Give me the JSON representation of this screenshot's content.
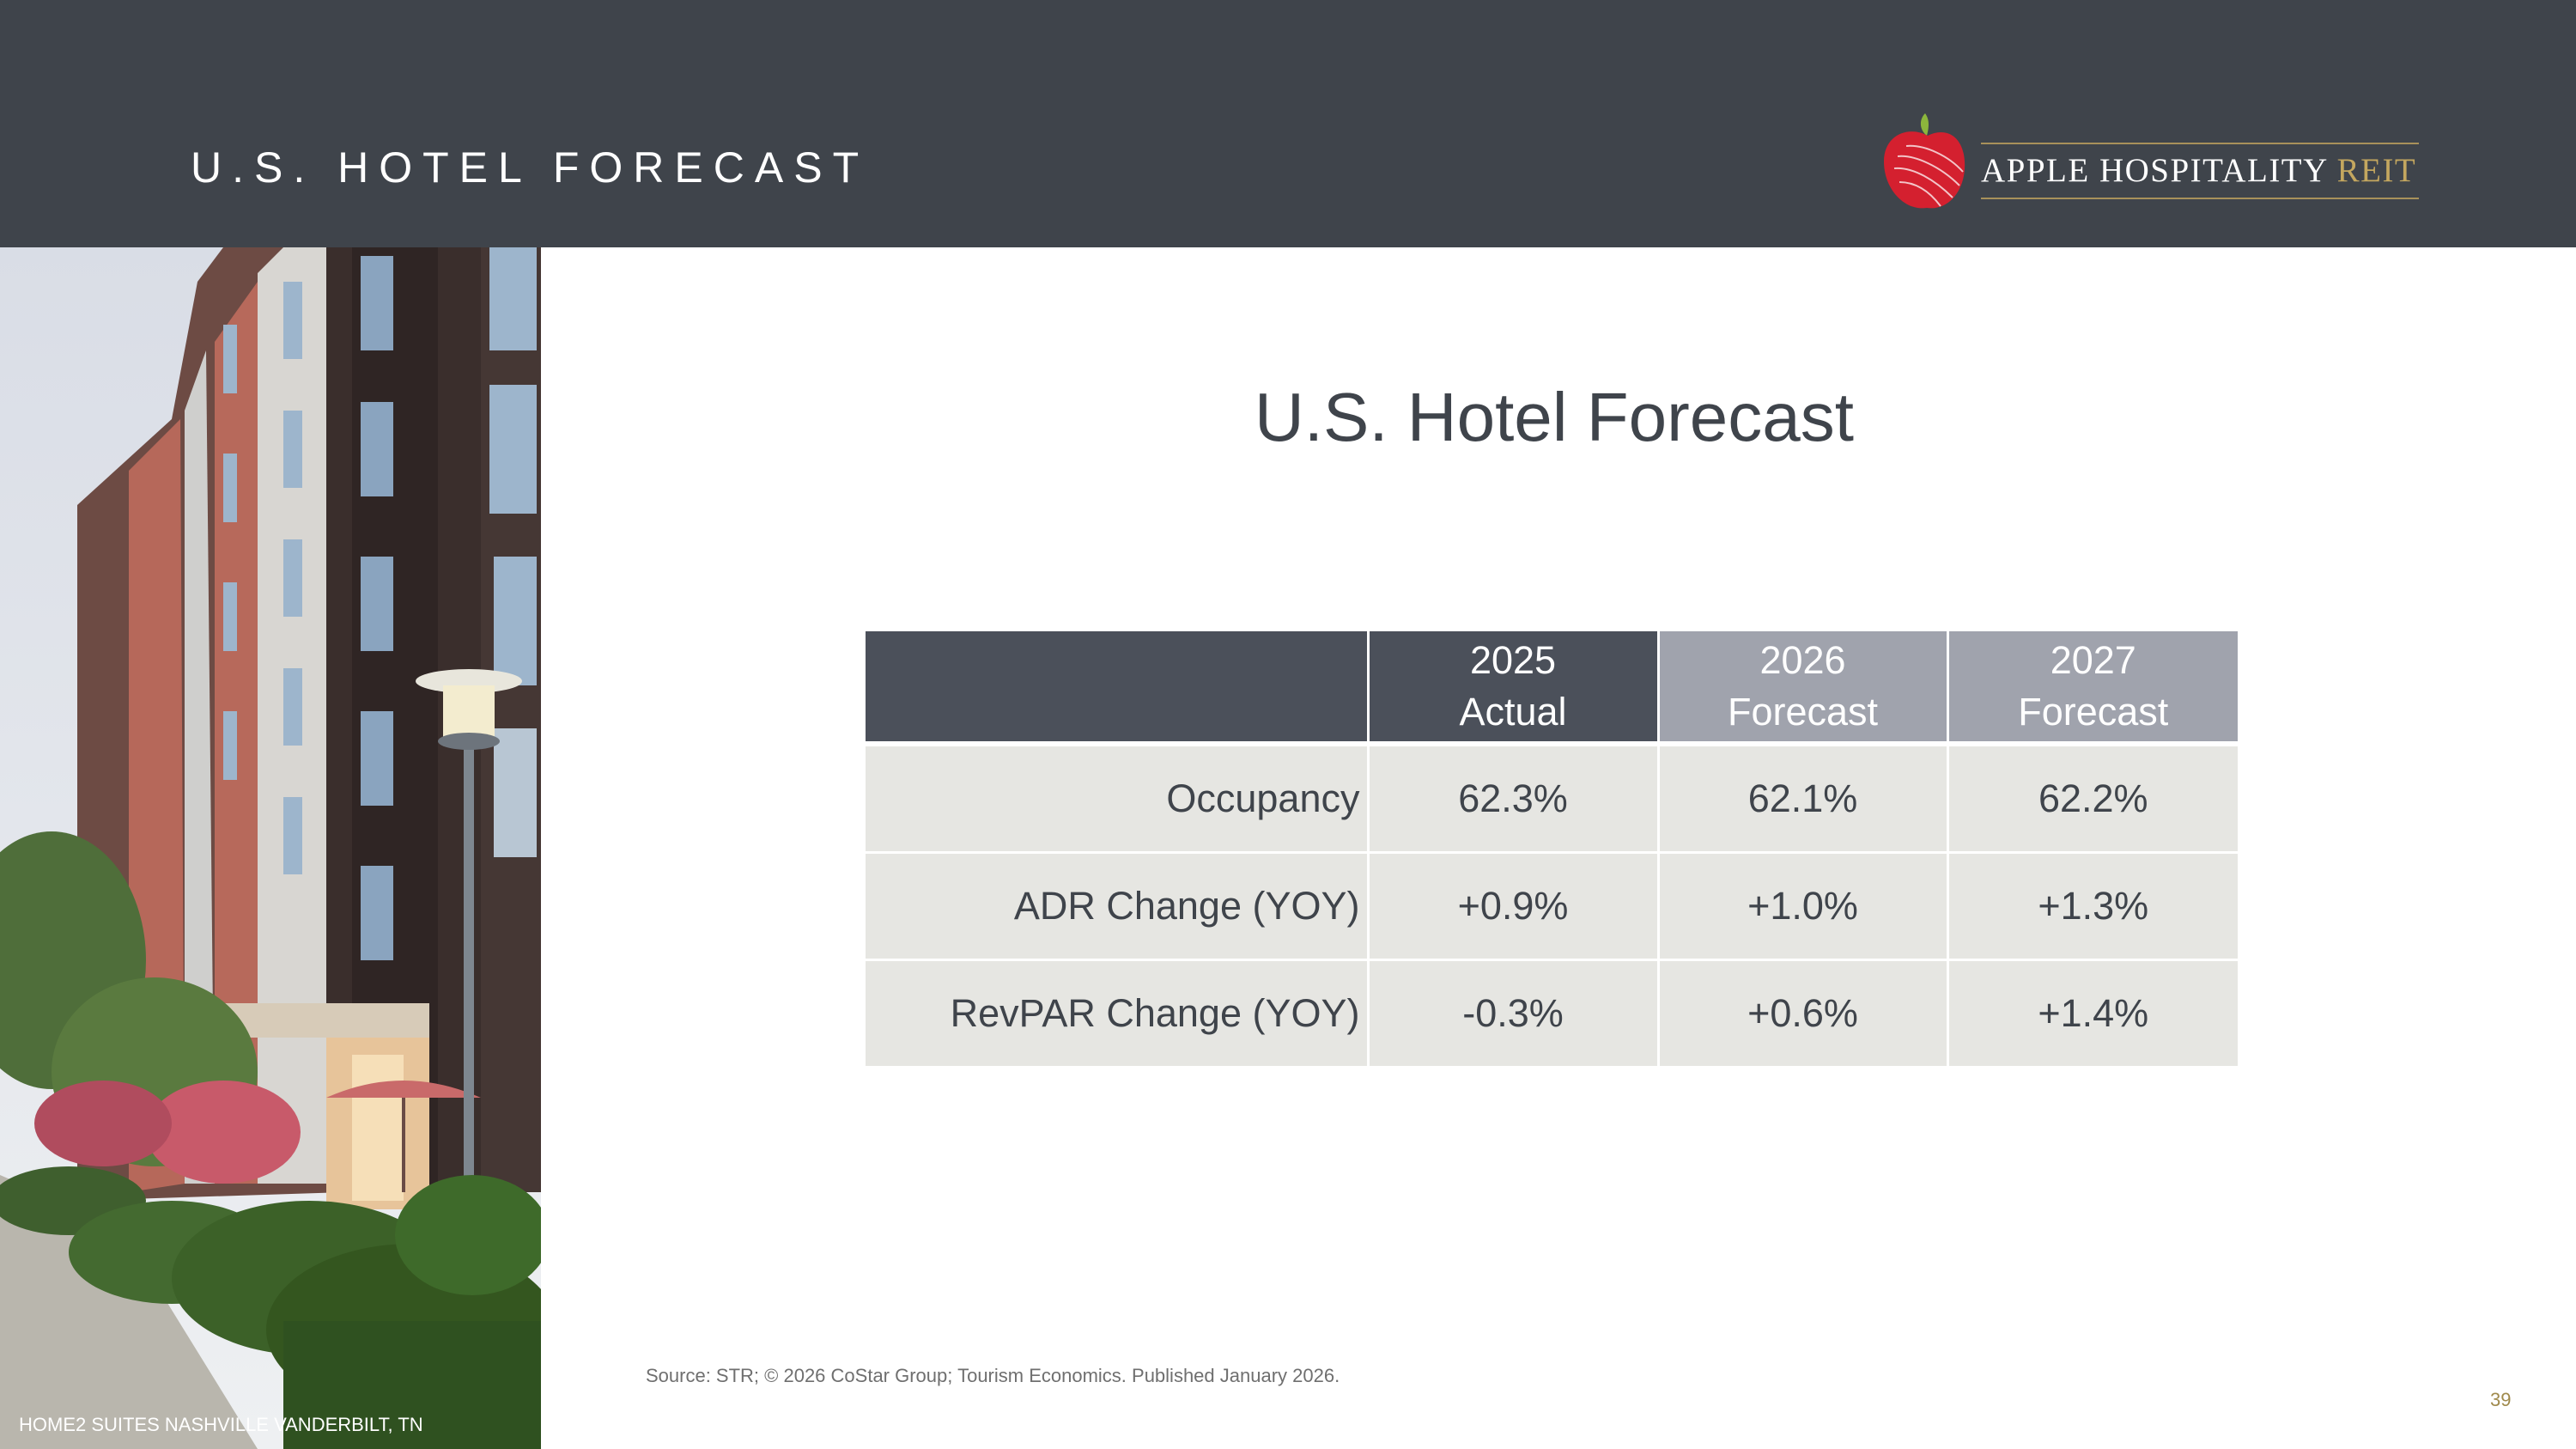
{
  "header": {
    "title": "U.S. HOTEL FORECAST",
    "logo": {
      "name": "APPLE HOSPITALITY",
      "suffix": "REIT",
      "icon": "apple-icon",
      "colors": {
        "apple": "#d4202f",
        "leaf": "#8cb63c",
        "gold": "#c4a75f"
      }
    }
  },
  "photo": {
    "caption": "HOME2 SUITES NASHVILLE VANDERBILT, TN"
  },
  "main": {
    "title": "U.S. Hotel Forecast",
    "table": {
      "columns": [
        {
          "year": "2025",
          "label": "Actual"
        },
        {
          "year": "2026",
          "label": "Forecast"
        },
        {
          "year": "2027",
          "label": "Forecast"
        }
      ],
      "rows": [
        {
          "label": "Occupancy",
          "values": [
            "62.3%",
            "62.1%",
            "62.2%"
          ]
        },
        {
          "label": "ADR Change (YOY)",
          "values": [
            "+0.9%",
            "+1.0%",
            "+1.3%"
          ]
        },
        {
          "label": "RevPAR Change (YOY)",
          "values": [
            "-0.3%",
            "+0.6%",
            "+1.4%"
          ]
        }
      ]
    }
  },
  "footer": {
    "source": "Source: STR; © 2026 CoStar Group; Tourism Economics. Published January 2026.",
    "page_number": "39"
  },
  "colors": {
    "header_bg": "#3f444b",
    "table_header_dark": "#4b505a",
    "table_header_light": "#a0a3ad",
    "table_cell_bg": "#e6e6e2"
  }
}
